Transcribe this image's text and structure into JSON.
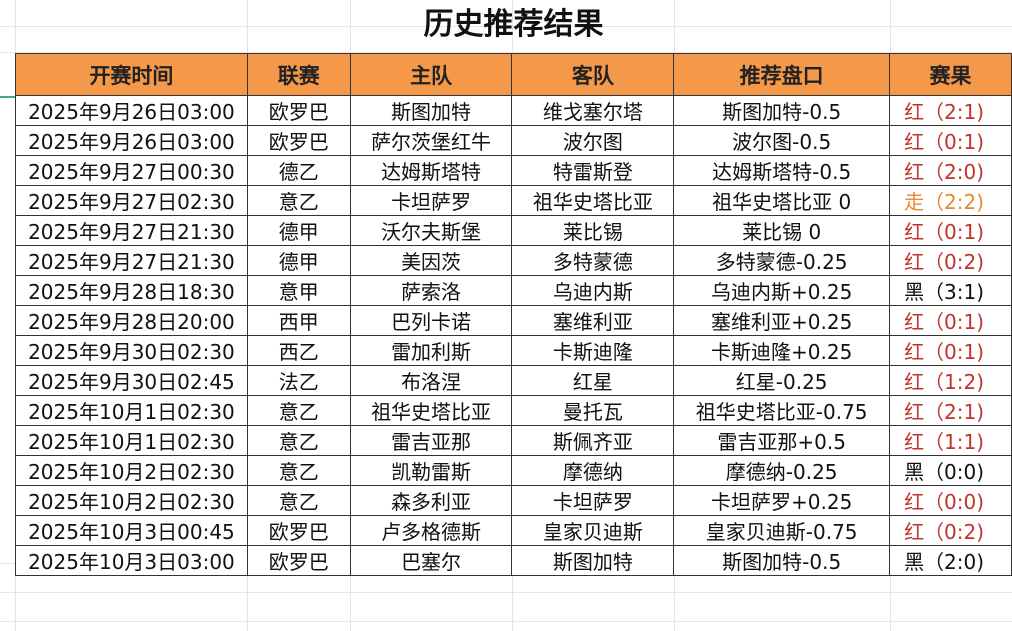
{
  "title": "历史推荐结果",
  "headers": [
    "开赛时间",
    "联赛",
    "主队",
    "客队",
    "推荐盘口",
    "赛果"
  ],
  "colors": {
    "header_bg": "#F4994A",
    "red": "#C0342C",
    "orange": "#E88A2C",
    "black": "#111111"
  },
  "rows": [
    {
      "time": "2025年9月26日03:00",
      "league": "欧罗巴",
      "home": "斯图加特",
      "away": "维戈塞尔塔",
      "pick": "斯图加特-0.5",
      "result": "红（2:1)",
      "status": "red"
    },
    {
      "time": "2025年9月26日03:00",
      "league": "欧罗巴",
      "home": "萨尔茨堡红牛",
      "away": "波尔图",
      "pick": "波尔图-0.5",
      "result": "红（0:1)",
      "status": "red"
    },
    {
      "time": "2025年9月27日00:30",
      "league": "德乙",
      "home": "达姆斯塔特",
      "away": "特雷斯登",
      "pick": "达姆斯塔特-0.5",
      "result": "红（2:0)",
      "status": "red"
    },
    {
      "time": "2025年9月27日02:30",
      "league": "意乙",
      "home": "卡坦萨罗",
      "away": "祖华史塔比亚",
      "pick": "祖华史塔比亚 0",
      "result": "走（2:2)",
      "status": "orange"
    },
    {
      "time": "2025年9月27日21:30",
      "league": "德甲",
      "home": "沃尔夫斯堡",
      "away": "莱比锡",
      "pick": "莱比锡 0",
      "result": "红（0:1)",
      "status": "red"
    },
    {
      "time": "2025年9月27日21:30",
      "league": "德甲",
      "home": "美因茨",
      "away": "多特蒙德",
      "pick": "多特蒙德-0.25",
      "result": "红（0:2)",
      "status": "red"
    },
    {
      "time": "2025年9月28日18:30",
      "league": "意甲",
      "home": "萨索洛",
      "away": "乌迪内斯",
      "pick": "乌迪内斯+0.25",
      "result": "黑（3:1)",
      "status": "black"
    },
    {
      "time": "2025年9月28日20:00",
      "league": "西甲",
      "home": "巴列卡诺",
      "away": "塞维利亚",
      "pick": "塞维利亚+0.25",
      "result": "红（0:1)",
      "status": "red"
    },
    {
      "time": "2025年9月30日02:30",
      "league": "西乙",
      "home": "雷加利斯",
      "away": "卡斯迪隆",
      "pick": "卡斯迪隆+0.25",
      "result": "红（0:1)",
      "status": "red"
    },
    {
      "time": "2025年9月30日02:45",
      "league": "法乙",
      "home": "布洛涅",
      "away": "红星",
      "pick": "红星-0.25",
      "result": "红（1:2)",
      "status": "red"
    },
    {
      "time": "2025年10月1日02:30",
      "league": "意乙",
      "home": "祖华史塔比亚",
      "away": "曼托瓦",
      "pick": "祖华史塔比亚-0.75",
      "result": "红（2:1)",
      "status": "red"
    },
    {
      "time": "2025年10月1日02:30",
      "league": "意乙",
      "home": "雷吉亚那",
      "away": "斯佩齐亚",
      "pick": "雷吉亚那+0.5",
      "result": "红（1:1)",
      "status": "red"
    },
    {
      "time": "2025年10月2日02:30",
      "league": "意乙",
      "home": "凯勒雷斯",
      "away": "摩德纳",
      "pick": "摩德纳-0.25",
      "result": "黑（0:0)",
      "status": "black"
    },
    {
      "time": "2025年10月2日02:30",
      "league": "意乙",
      "home": "森多利亚",
      "away": "卡坦萨罗",
      "pick": "卡坦萨罗+0.25",
      "result": "红（0:0)",
      "status": "red"
    },
    {
      "time": "2025年10月3日00:45",
      "league": "欧罗巴",
      "home": "卢多格德斯",
      "away": "皇家贝迪斯",
      "pick": "皇家贝迪斯-0.75",
      "result": "红（0:2)",
      "status": "red"
    },
    {
      "time": "2025年10月3日03:00",
      "league": "欧罗巴",
      "home": "巴塞尔",
      "away": "斯图加特",
      "pick": "斯图加特-0.5",
      "result": "黑（2:0)",
      "status": "black"
    }
  ]
}
